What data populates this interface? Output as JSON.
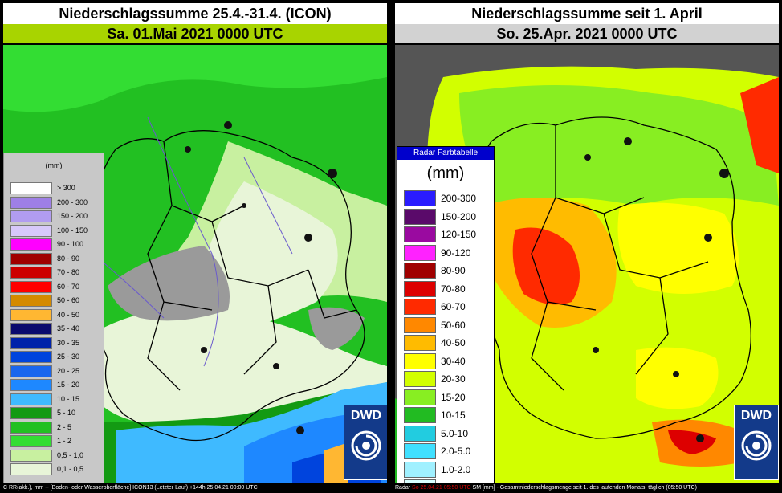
{
  "left": {
    "title": "Niederschlagssumme 25.4.-31.4. (ICON)",
    "subtitle": "Sa. 01.Mai 2021 0000 UTC",
    "legend_unit": "(mm)",
    "legend": [
      {
        "label": "> 300",
        "color": "#ffffff"
      },
      {
        "label": "200 - 300",
        "color": "#9e7fe6"
      },
      {
        "label": "150 - 200",
        "color": "#b19cf0"
      },
      {
        "label": "100 - 150",
        "color": "#d7c8fa"
      },
      {
        "label": "90 - 100",
        "color": "#ff00ff"
      },
      {
        "label": "80 - 90",
        "color": "#a00000"
      },
      {
        "label": "70 - 80",
        "color": "#cc0000"
      },
      {
        "label": "60 - 70",
        "color": "#ff0000"
      },
      {
        "label": "50 - 60",
        "color": "#d48a00"
      },
      {
        "label": "40 - 50",
        "color": "#ffb732"
      },
      {
        "label": "35 - 40",
        "color": "#0a0a6e"
      },
      {
        "label": "30 - 35",
        "color": "#0022aa"
      },
      {
        "label": "25 - 30",
        "color": "#0044dd"
      },
      {
        "label": "20 - 25",
        "color": "#1a66ee"
      },
      {
        "label": "15 - 20",
        "color": "#1e88ff"
      },
      {
        "label": "10 - 15",
        "color": "#3fbaff"
      },
      {
        "label": "5 - 10",
        "color": "#139a13"
      },
      {
        "label": "2 - 5",
        "color": "#22c022"
      },
      {
        "label": "1 - 2",
        "color": "#33dd33"
      },
      {
        "label": "0,5 - 1,0",
        "color": "#c8f0a0"
      },
      {
        "label": "0,1 - 0,5",
        "color": "#e8f5d8"
      }
    ],
    "footer": "C  RR(akk.), mm  --  [Boden- oder Wasseroberfläche] ICON13 (Letzter Lauf) +144h  25.04.21 00:00 UTC"
  },
  "right": {
    "title": "Niederschlagssumme seit 1. April",
    "subtitle": "So. 25.Apr. 2021 0000 UTC",
    "legend_header": "Radar Farbtabelle",
    "legend_unit": "(mm)",
    "legend": [
      {
        "label": "200-300",
        "color": "#2a1cff"
      },
      {
        "label": "150-200",
        "color": "#5a0a6a"
      },
      {
        "label": "120-150",
        "color": "#9a0aa0"
      },
      {
        "label": "90-120",
        "color": "#ff22ff"
      },
      {
        "label": "80-90",
        "color": "#a00000"
      },
      {
        "label": "70-80",
        "color": "#dd0000"
      },
      {
        "label": "60-70",
        "color": "#ff2a00"
      },
      {
        "label": "50-60",
        "color": "#ff8800"
      },
      {
        "label": "40-50",
        "color": "#ffbb00"
      },
      {
        "label": "30-40",
        "color": "#ffff00"
      },
      {
        "label": "20-30",
        "color": "#d2ff00"
      },
      {
        "label": "15-20",
        "color": "#88ee22"
      },
      {
        "label": "10-15",
        "color": "#22bb22"
      },
      {
        "label": "5.0-10",
        "color": "#22cce0"
      },
      {
        "label": "2.0-5.0",
        "color": "#40e0ff"
      },
      {
        "label": "1.0-2.0",
        "color": "#a0f0ff"
      },
      {
        "label": "0.1-1.0",
        "color": "#d8ffff"
      }
    ],
    "footer_prefix": "Radar",
    "footer_red": "So 25.04.21 05:50 UTC",
    "footer": "SM [mm] - Gesamtniederschlagsmenge seit 1. des laufenden Monats, täglich (05:50 UTC)"
  },
  "logo": "DWD",
  "colors": {
    "left_subtitle_bg": "#a8d400",
    "right_subtitle_bg": "#d2d2d2",
    "legend_header_bg": "#0000cc",
    "dwd_blue": "#133a8a"
  }
}
